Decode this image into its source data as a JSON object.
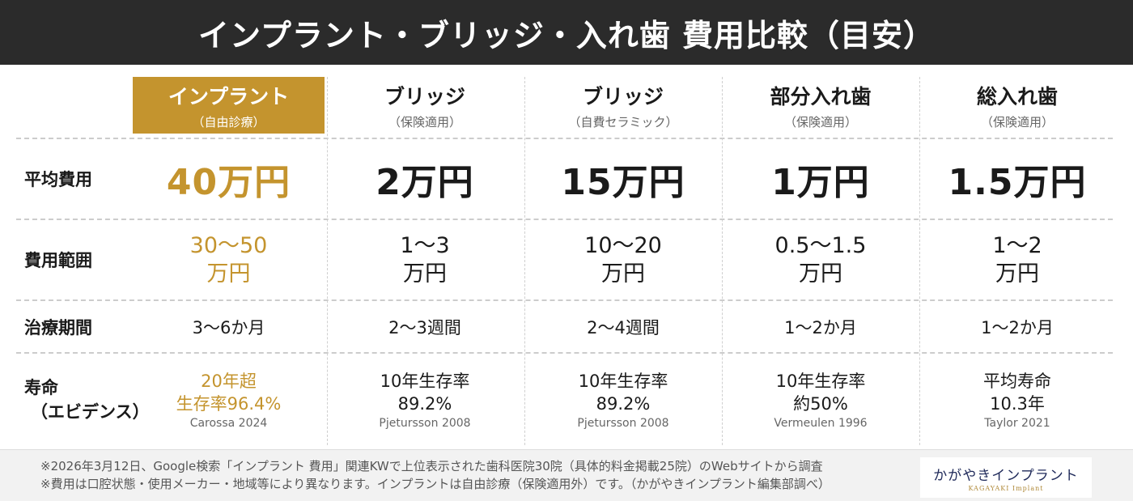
{
  "title": "インプラント・ブリッジ・入れ歯 費用比較（目安）",
  "columns": [
    {
      "title": "インプラント",
      "sub": "（自由診療）"
    },
    {
      "title": "ブリッジ",
      "sub": "（保険適用）"
    },
    {
      "title": "ブリッジ",
      "sub": "（自費セラミック）"
    },
    {
      "title": "部分入れ歯",
      "sub": "（保険適用）"
    },
    {
      "title": "総入れ歯",
      "sub": "（保険適用）"
    }
  ],
  "rows": {
    "avg_cost": {
      "label": "平均費用",
      "values": [
        "40万円",
        "2万円",
        "15万円",
        "1万円",
        "1.5万円"
      ]
    },
    "range": {
      "label": "費用範囲",
      "values": [
        {
          "line1": "30〜50",
          "line2": "万円"
        },
        {
          "line1": "1〜3",
          "line2": "万円"
        },
        {
          "line1": "10〜20",
          "line2": "万円"
        },
        {
          "line1": "0.5〜1.5",
          "line2": "万円"
        },
        {
          "line1": "1〜2",
          "line2": "万円"
        }
      ]
    },
    "period": {
      "label": "治療期間",
      "values": [
        "3〜6か月",
        "2〜3週間",
        "2〜4週間",
        "1〜2か月",
        "1〜2か月"
      ]
    },
    "lifespan": {
      "label_line1": "寿命",
      "label_line2": "（エビデンス）",
      "values": [
        {
          "line1": "20年超",
          "line2": "生存率96.4%",
          "source": "Carossa 2024"
        },
        {
          "line1": "10年生存率",
          "line2": "89.2%",
          "source": "Pjetursson 2008"
        },
        {
          "line1": "10年生存率",
          "line2": "89.2%",
          "source": "Pjetursson 2008"
        },
        {
          "line1": "10年生存率",
          "line2": "約50%",
          "source": "Vermeulen 1996"
        },
        {
          "line1": "平均寿命",
          "line2": "10.3年",
          "source": "Taylor 2021"
        }
      ]
    }
  },
  "notes": [
    "※2026年3月12日、Google検索「インプラント 費用」関連KWで上位表示された歯科医院30院（具体的料金掲載25院）のWebサイトから調査",
    "※費用は口腔状態・使用メーカー・地域等により異なります。インプラントは自由診療（保険適用外）です。（かがやきインプラント編集部調べ）"
  ],
  "logo": {
    "text": "かがやきインプラント",
    "sub": "KAGAYAKI Implant"
  },
  "colors": {
    "accent": "#c4942e",
    "banner": "#2b2b2b",
    "text": "#1a1a1a",
    "muted": "#666666"
  }
}
